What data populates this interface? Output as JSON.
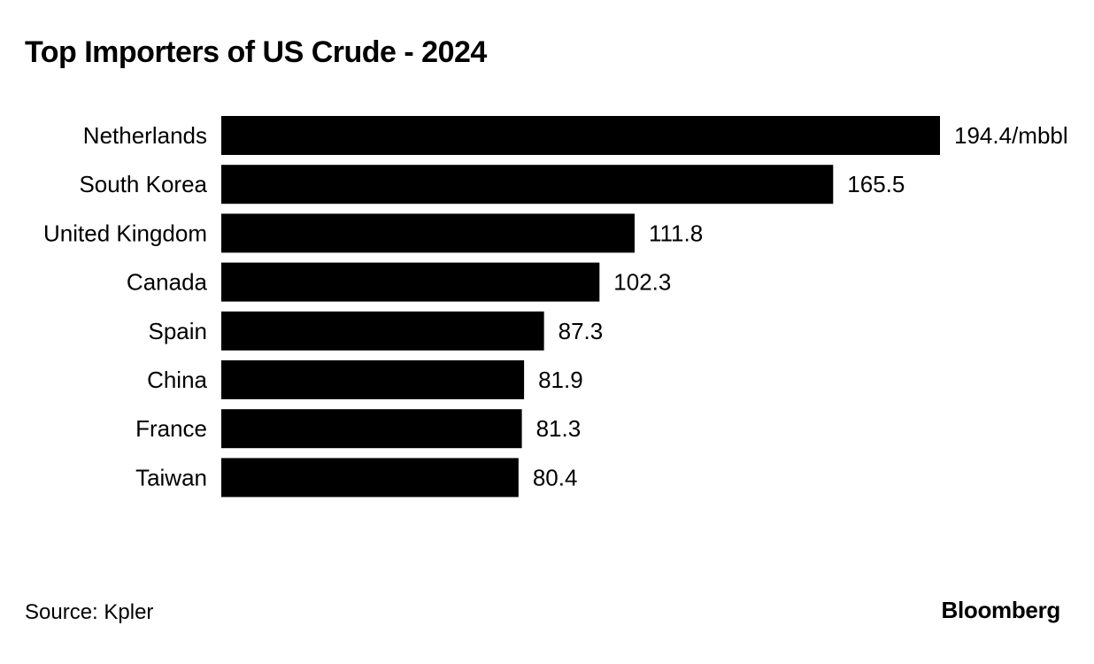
{
  "chart_data": {
    "type": "bar",
    "orientation": "horizontal",
    "title": "Top Importers of US Crude - 2024",
    "categories": [
      "Netherlands",
      "South Korea",
      "United Kingdom",
      "Canada",
      "Spain",
      "China",
      "France",
      "Taiwan"
    ],
    "values": [
      194.4,
      165.5,
      111.8,
      102.3,
      87.3,
      81.9,
      81.3,
      80.4
    ],
    "value_labels": [
      "194.4/mbbl",
      "165.5",
      "111.8",
      "102.3",
      "87.3",
      "81.9",
      "81.3",
      "80.4"
    ],
    "unit": "mbbl",
    "xlabel": "",
    "ylabel": "",
    "grid": false,
    "legend": "none",
    "bar_color": "#000000"
  },
  "footer": {
    "source": "Source: Kpler",
    "brand": "Bloomberg"
  }
}
